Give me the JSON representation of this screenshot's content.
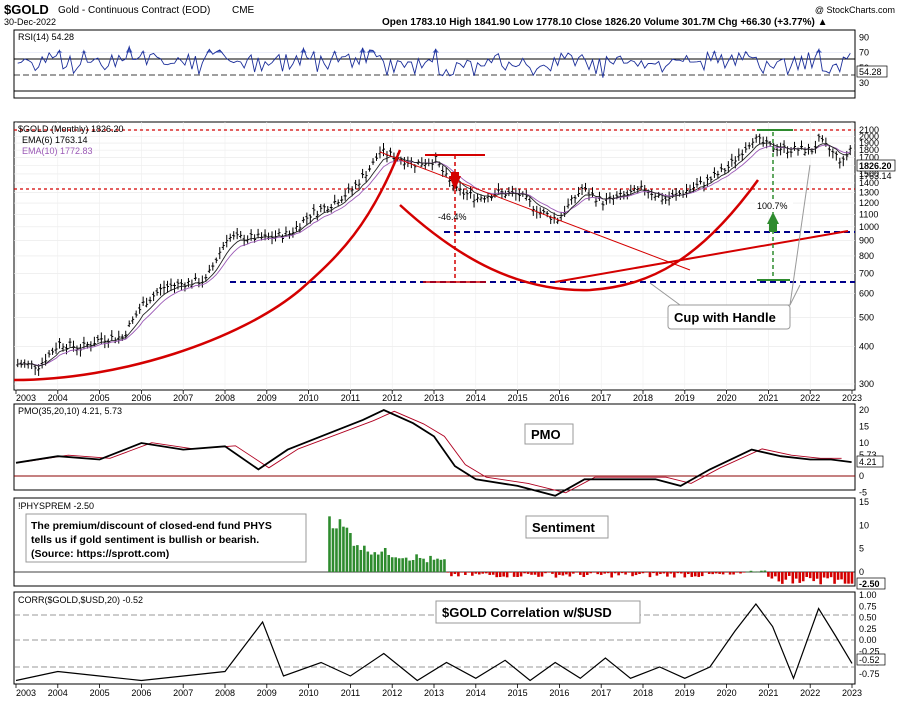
{
  "header": {
    "symbol": "$GOLD",
    "description": "Gold - Continuous Contract (EOD)",
    "exchange": "CME",
    "date": "30-Dec-2022",
    "copyright": "@ StockCharts.com",
    "quote": "Open 1783.10   High 1841.90   Low 1778.10   Close 1826.20   Volume 301.7M   Chg +66.30 (+3.77%) ▲"
  },
  "colors": {
    "price_up": "#000000",
    "ema6": "#1a1a1a",
    "ema10": "#9b59b6",
    "red_line": "#d40000",
    "blue_dash": "#00008b",
    "green": "#2e8b2e",
    "rsi_fill": "#5b72c8"
  },
  "rsi_panel": {
    "label": "RSI(14) 54.28",
    "ticks": [
      "90",
      "70",
      "50",
      "30"
    ],
    "value_label": "54.28"
  },
  "price_panel": {
    "label": "$GOLD (Monthly) 1826.20",
    "ema6_label": "EMA(6) 1763.14",
    "ema10_label": "EMA(10) 1772.83",
    "ticks": [
      "2100",
      "2000",
      "1900",
      "1800",
      "1700",
      "1600",
      "1500",
      "1400",
      "1300",
      "1200",
      "1100",
      "1000",
      "900",
      "800",
      "700",
      "600",
      "500",
      "400",
      "300"
    ],
    "last_labels": [
      "1826.20",
      "1763.14",
      "1772.83"
    ],
    "pct_drop": "-46.4%",
    "pct_gain": "100.7%",
    "pattern_label": "Cup with Handle"
  },
  "pmo_panel": {
    "label": "PMO(35,20,10) 4.21, 5.73",
    "title": "PMO",
    "ticks": [
      "20",
      "15",
      "10",
      "5",
      "0",
      "-5"
    ],
    "value_labels": [
      "5.73",
      "4.21"
    ]
  },
  "physprem_panel": {
    "label": "!PHYSPREM -2.50",
    "title": "Sentiment",
    "note_lines": [
      "The premium/discount of closed-end fund PHYS",
      "tells us if gold sentiment is bullish or bearish.",
      "(Source: https://sprott.com)"
    ],
    "ticks": [
      "15",
      "10",
      "5",
      "0"
    ],
    "value_label": "-2.50"
  },
  "corr_panel": {
    "label": "CORR($GOLD,$USD,20) -0.52",
    "title": "$GOLD Correlation w/$USD",
    "ticks": [
      "1.00",
      "0.75",
      "0.50",
      "0.25",
      "0.00",
      "-0.25",
      "-0.50",
      "-0.75"
    ],
    "value_label": "-0.52"
  },
  "x_axis": {
    "years": [
      "2003",
      "2004",
      "2005",
      "2006",
      "2007",
      "2008",
      "2009",
      "2010",
      "2011",
      "2012",
      "2013",
      "2014",
      "2015",
      "2016",
      "2017",
      "2018",
      "2019",
      "2020",
      "2021",
      "2022",
      "2023"
    ]
  },
  "chart_data": {
    "type": "line",
    "x": [
      "2003-01",
      "2003-07",
      "2004-01",
      "2004-07",
      "2005-01",
      "2005-07",
      "2006-01",
      "2006-07",
      "2007-01",
      "2007-07",
      "2008-01",
      "2008-07",
      "2009-01",
      "2009-07",
      "2010-01",
      "2010-07",
      "2011-01",
      "2011-07",
      "2011-09",
      "2012-01",
      "2012-07",
      "2013-01",
      "2013-04",
      "2013-07",
      "2014-01",
      "2014-07",
      "2015-01",
      "2015-07",
      "2015-12",
      "2016-07",
      "2017-01",
      "2017-07",
      "2018-01",
      "2018-07",
      "2019-01",
      "2019-07",
      "2020-01",
      "2020-08",
      "2021-01",
      "2021-07",
      "2022-01",
      "2022-03",
      "2022-07",
      "2022-10",
      "2022-12"
    ],
    "series": [
      {
        "name": "$GOLD (Monthly)",
        "values": [
          350,
          345,
          410,
          395,
          425,
          430,
          555,
          630,
          650,
          665,
          920,
          920,
          920,
          950,
          1100,
          1190,
          1330,
          1620,
          1780,
          1720,
          1620,
          1670,
          1460,
          1320,
          1250,
          1300,
          1280,
          1120,
          1060,
          1340,
          1210,
          1270,
          1340,
          1230,
          1320,
          1420,
          1580,
          1970,
          1850,
          1810,
          1800,
          1940,
          1760,
          1640,
          1826.2
        ]
      }
    ],
    "ylim": [
      280,
      2100
    ],
    "log_scale": true,
    "grid": true
  }
}
